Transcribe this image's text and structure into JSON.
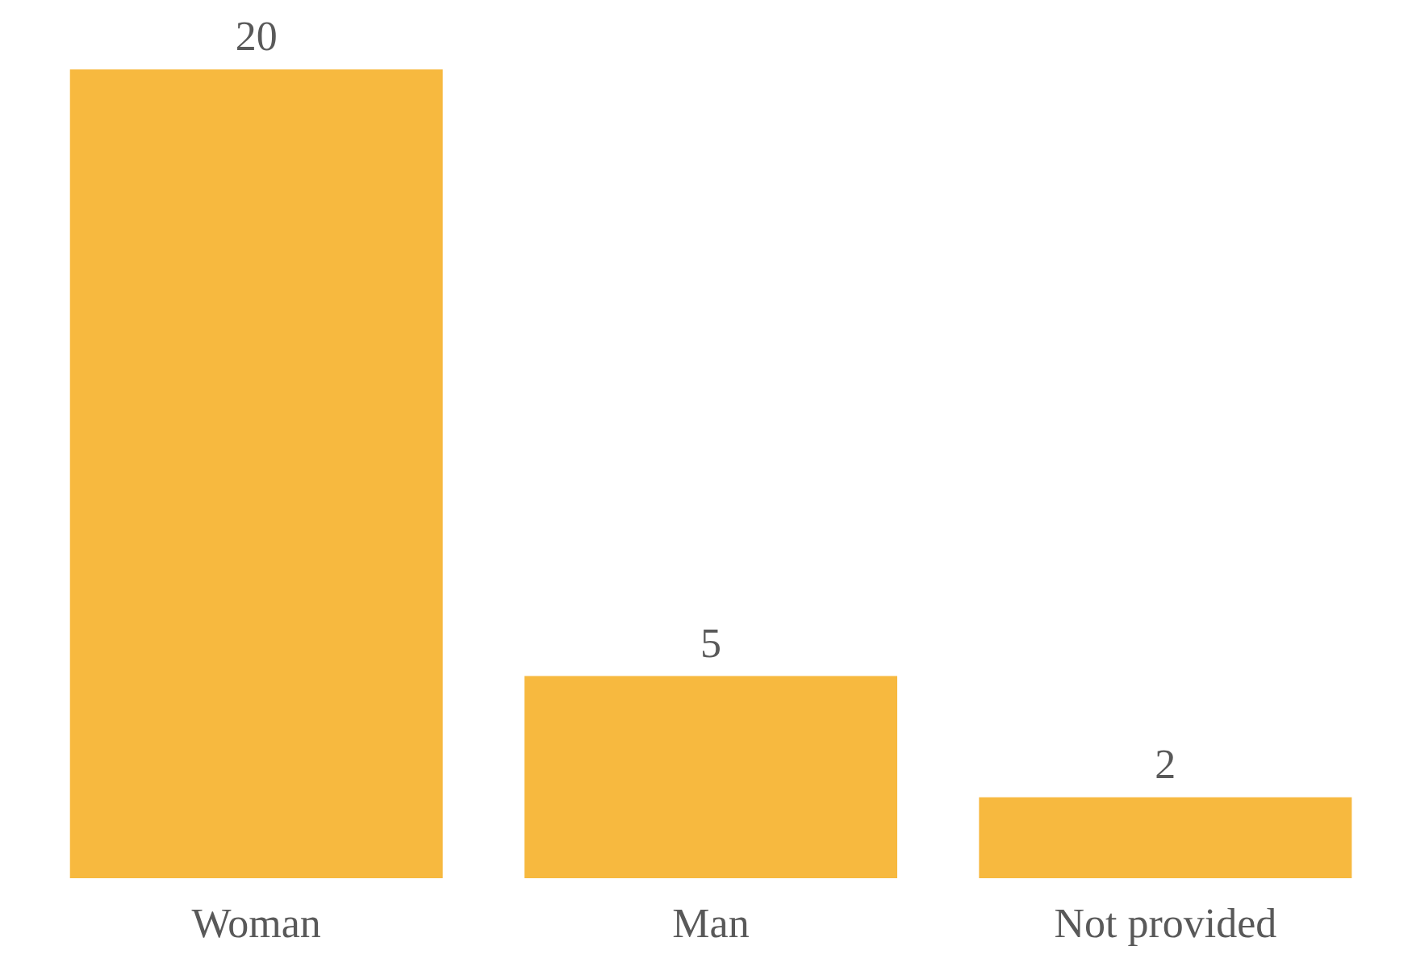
{
  "chart_data": {
    "type": "bar",
    "categories": [
      "Woman",
      "Man",
      "Not provided"
    ],
    "values": [
      20,
      5,
      2
    ],
    "color": "#f7b93f",
    "data_labels": true
  }
}
